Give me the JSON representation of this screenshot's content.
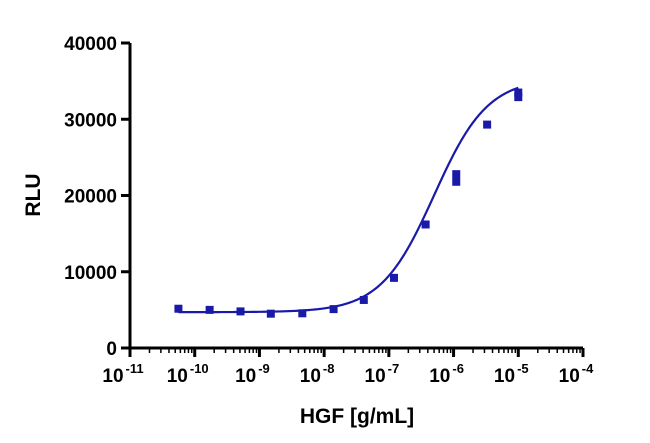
{
  "chart_data": {
    "type": "scatter",
    "xscale": "log",
    "xlabel": "HGF [g/mL]",
    "ylabel": "RLU",
    "xlim": [
      1e-11,
      0.0001
    ],
    "ylim": [
      0,
      40000
    ],
    "x_major_ticks": [
      {
        "base": "10",
        "exp": "-11",
        "value": 1e-11
      },
      {
        "base": "10",
        "exp": "-10",
        "value": 1e-10
      },
      {
        "base": "10",
        "exp": "-9",
        "value": 1e-09
      },
      {
        "base": "10",
        "exp": "-8",
        "value": 1e-08
      },
      {
        "base": "10",
        "exp": "-7",
        "value": 1e-07
      },
      {
        "base": "10",
        "exp": "-6",
        "value": 1e-06
      },
      {
        "base": "10",
        "exp": "-5",
        "value": 1e-05
      },
      {
        "base": "10",
        "exp": "-4",
        "value": 0.0001
      }
    ],
    "y_ticks": [
      {
        "label": "0",
        "value": 0
      },
      {
        "label": "10000",
        "value": 10000
      },
      {
        "label": "20000",
        "value": 20000
      },
      {
        "label": "30000",
        "value": 30000
      },
      {
        "label": "40000",
        "value": 40000
      }
    ],
    "series": [
      {
        "points": [
          {
            "x": 5.6e-11,
            "y": 5150
          },
          {
            "x": 1.7e-10,
            "y": 5000
          },
          {
            "x": 5.1e-10,
            "y": 4800
          },
          {
            "x": 1.5e-09,
            "y": 4500
          },
          {
            "x": 4.6e-09,
            "y": 4550
          },
          {
            "x": 1.4e-08,
            "y": 5100
          },
          {
            "x": 4.1e-08,
            "y": 6300
          },
          {
            "x": 1.2e-07,
            "y": 9200
          },
          {
            "x": 3.7e-07,
            "y": 16200
          },
          {
            "x": 1.1e-06,
            "y": 21800
          },
          {
            "x": 1.1e-06,
            "y": 22800
          },
          {
            "x": 3.3e-06,
            "y": 29300
          },
          {
            "x": 1e-05,
            "y": 32900
          },
          {
            "x": 1e-05,
            "y": 33500
          }
        ],
        "fit": {
          "bottom": 4700,
          "top": 35400,
          "log_ec50": -6.3,
          "hill": 1.05
        },
        "color": "#1a1aa8"
      }
    ],
    "grid": false,
    "legend": "none"
  }
}
